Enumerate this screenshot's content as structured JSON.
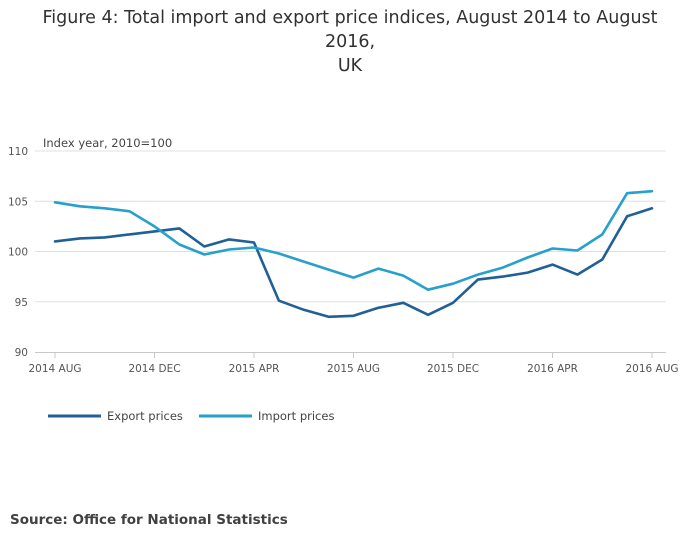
{
  "title_lines": [
    "Figure 4: Total import and export price indices, August 2014 to August 2016,",
    "UK"
  ],
  "source": "Source: Office for National Statistics",
  "chart_data": {
    "type": "line",
    "title": "Figure 4: Total import and export price indices, August 2014 to August 2016, UK",
    "ylabel": "Index year, 2010=100",
    "xlabel": "",
    "x": [
      "2014 AUG",
      "2014 SEP",
      "2014 OCT",
      "2014 NOV",
      "2014 DEC",
      "2015 JAN",
      "2015 FEB",
      "2015 MAR",
      "2015 APR",
      "2015 MAY",
      "2015 JUN",
      "2015 JUL",
      "2015 AUG",
      "2015 SEP",
      "2015 OCT",
      "2015 NOV",
      "2015 DEC",
      "2016 JAN",
      "2016 FEB",
      "2016 MAR",
      "2016 APR",
      "2016 MAY",
      "2016 JUN",
      "2016 JUL",
      "2016 AUG"
    ],
    "x_tick_labels": [
      "2014 AUG",
      "2014 DEC",
      "2015 APR",
      "2015 AUG",
      "2015 DEC",
      "2016 APR",
      "2016 AUG"
    ],
    "x_tick_indices": [
      0,
      4,
      8,
      12,
      16,
      20,
      24
    ],
    "y_ticks": [
      90,
      95,
      100,
      105,
      110
    ],
    "ylim": [
      90,
      110
    ],
    "grid": true,
    "legend_position": "bottom-left",
    "series": [
      {
        "name": "Export prices",
        "color": "#206095",
        "values": [
          101.0,
          101.3,
          101.4,
          101.7,
          102.0,
          102.3,
          100.5,
          101.2,
          100.9,
          95.1,
          94.2,
          93.5,
          93.6,
          94.4,
          94.9,
          93.7,
          94.9,
          97.2,
          97.5,
          97.9,
          98.7,
          97.7,
          99.2,
          103.5,
          104.3
        ]
      },
      {
        "name": "Import prices",
        "color": "#27a0cc",
        "values": [
          104.9,
          104.5,
          104.3,
          104.0,
          102.5,
          100.7,
          99.7,
          100.2,
          100.4,
          99.8,
          99.0,
          98.2,
          97.4,
          98.3,
          97.6,
          96.2,
          96.8,
          97.7,
          98.4,
          99.4,
          100.3,
          100.1,
          101.7,
          105.8,
          106.0
        ]
      }
    ]
  }
}
